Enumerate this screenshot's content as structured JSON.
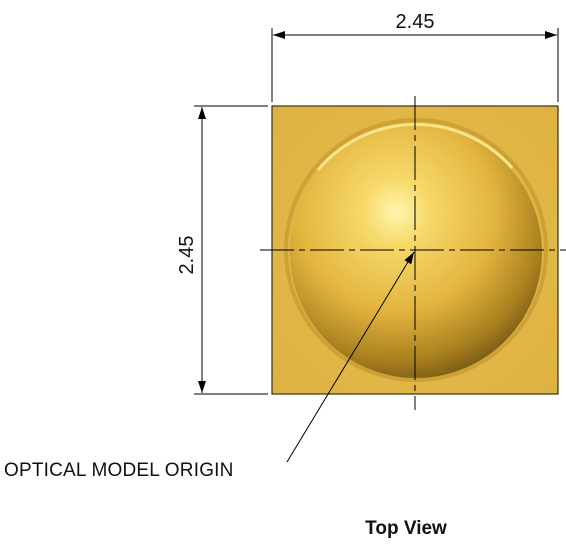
{
  "drawing": {
    "width_dimension": "2.45",
    "height_dimension": "2.45",
    "origin_label": "OPTICAL MODEL ORIGIN",
    "view_caption": "Top View"
  },
  "colors": {
    "package_fill": "#E3B84A",
    "package_edge": "#3A2E10",
    "lens_highlight": "#FFF3A8",
    "lens_mid": "#E9C04A",
    "lens_shadow": "#6E5213",
    "line": "#000000"
  }
}
